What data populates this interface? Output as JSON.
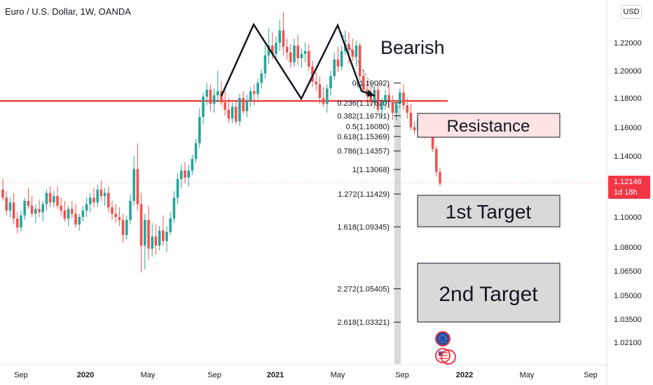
{
  "header": {
    "title": "Euro / U.S. Dollar, 1W, OANDA",
    "currency": "USD"
  },
  "last_price": {
    "value": "1.12146",
    "countdown": "1d 18h",
    "color": "#f23645"
  },
  "colors": {
    "up": "#26a69a",
    "down": "#ef5350",
    "resistance_line": "#e51e1e",
    "pattern": "#131722"
  },
  "chart_data": {
    "type": "candlestick",
    "title": "Euro / U.S. Dollar, 1W, OANDA",
    "y_ticks": [
      "1.22000",
      "1.20000",
      "1.18000",
      "1.16000",
      "1.14000",
      "1.12000",
      "1.10000",
      "1.08000",
      "1.06500",
      "1.05000",
      "1.03500",
      "1.02100"
    ],
    "x_ticks": [
      "Sep",
      "2020",
      "May",
      "Sep",
      "2021",
      "May",
      "Sep",
      "2022",
      "May",
      "Sep"
    ],
    "grid": false,
    "horizontal_line": 1.178,
    "price_line": 1.12146,
    "annotations": [
      "Bearish",
      "Resistance",
      "1st Target",
      "2nd Target"
    ],
    "pattern": "double top (M)",
    "fib_levels": [
      {
        "label": "0(1.19092)",
        "value": 1.19092
      },
      {
        "label": "0.236(1.17670)",
        "value": 1.1767
      },
      {
        "label": "0.382(1.16791)",
        "value": 1.16791
      },
      {
        "label": "0.5(1.16080)",
        "value": 1.1608
      },
      {
        "label": "0.618(1.15369)",
        "value": 1.15369
      },
      {
        "label": "0.786(1.14357)",
        "value": 1.14357
      },
      {
        "label": "1(1.13068)",
        "value": 1.13068
      },
      {
        "label": "1.272(1.11429)",
        "value": 1.11429
      },
      {
        "label": "1.618(1.09345)",
        "value": 1.09345
      },
      {
        "label": "2.272(1.05405)",
        "value": 1.05405
      },
      {
        "label": "2.618(1.03321)",
        "value": 1.03321
      }
    ],
    "series": [
      {
        "t": 0,
        "o": 1.117,
        "h": 1.124,
        "l": 1.11,
        "c": 1.112
      },
      {
        "t": 1,
        "o": 1.112,
        "h": 1.116,
        "l": 1.101,
        "c": 1.104
      },
      {
        "t": 2,
        "o": 1.104,
        "h": 1.112,
        "l": 1.1,
        "c": 1.109
      },
      {
        "t": 3,
        "o": 1.109,
        "h": 1.115,
        "l": 1.095,
        "c": 1.099
      },
      {
        "t": 4,
        "o": 1.099,
        "h": 1.103,
        "l": 1.089,
        "c": 1.093
      },
      {
        "t": 5,
        "o": 1.093,
        "h": 1.104,
        "l": 1.09,
        "c": 1.101
      },
      {
        "t": 6,
        "o": 1.101,
        "h": 1.112,
        "l": 1.098,
        "c": 1.11
      },
      {
        "t": 7,
        "o": 1.11,
        "h": 1.118,
        "l": 1.105,
        "c": 1.107
      },
      {
        "t": 8,
        "o": 1.107,
        "h": 1.113,
        "l": 1.1,
        "c": 1.102
      },
      {
        "t": 9,
        "o": 1.102,
        "h": 1.108,
        "l": 1.096,
        "c": 1.105
      },
      {
        "t": 10,
        "o": 1.105,
        "h": 1.111,
        "l": 1.1,
        "c": 1.103
      },
      {
        "t": 11,
        "o": 1.103,
        "h": 1.11,
        "l": 1.097,
        "c": 1.108
      },
      {
        "t": 12,
        "o": 1.108,
        "h": 1.117,
        "l": 1.104,
        "c": 1.115
      },
      {
        "t": 13,
        "o": 1.115,
        "h": 1.119,
        "l": 1.106,
        "c": 1.109
      },
      {
        "t": 14,
        "o": 1.109,
        "h": 1.116,
        "l": 1.106,
        "c": 1.113
      },
      {
        "t": 15,
        "o": 1.113,
        "h": 1.119,
        "l": 1.105,
        "c": 1.107
      },
      {
        "t": 16,
        "o": 1.107,
        "h": 1.112,
        "l": 1.101,
        "c": 1.104
      },
      {
        "t": 17,
        "o": 1.104,
        "h": 1.11,
        "l": 1.097,
        "c": 1.099
      },
      {
        "t": 18,
        "o": 1.099,
        "h": 1.107,
        "l": 1.094,
        "c": 1.105
      },
      {
        "t": 19,
        "o": 1.105,
        "h": 1.11,
        "l": 1.099,
        "c": 1.102
      },
      {
        "t": 20,
        "o": 1.102,
        "h": 1.108,
        "l": 1.093,
        "c": 1.095
      },
      {
        "t": 21,
        "o": 1.095,
        "h": 1.102,
        "l": 1.091,
        "c": 1.1
      },
      {
        "t": 22,
        "o": 1.1,
        "h": 1.107,
        "l": 1.097,
        "c": 1.104
      },
      {
        "t": 23,
        "o": 1.104,
        "h": 1.112,
        "l": 1.1,
        "c": 1.108
      },
      {
        "t": 24,
        "o": 1.108,
        "h": 1.115,
        "l": 1.103,
        "c": 1.112
      },
      {
        "t": 25,
        "o": 1.112,
        "h": 1.118,
        "l": 1.106,
        "c": 1.109
      },
      {
        "t": 26,
        "o": 1.109,
        "h": 1.12,
        "l": 1.106,
        "c": 1.117
      },
      {
        "t": 27,
        "o": 1.117,
        "h": 1.123,
        "l": 1.11,
        "c": 1.113
      },
      {
        "t": 28,
        "o": 1.113,
        "h": 1.118,
        "l": 1.107,
        "c": 1.115
      },
      {
        "t": 29,
        "o": 1.115,
        "h": 1.119,
        "l": 1.103,
        "c": 1.106
      },
      {
        "t": 30,
        "o": 1.106,
        "h": 1.11,
        "l": 1.098,
        "c": 1.102
      },
      {
        "t": 31,
        "o": 1.102,
        "h": 1.108,
        "l": 1.096,
        "c": 1.1
      },
      {
        "t": 32,
        "o": 1.1,
        "h": 1.106,
        "l": 1.094,
        "c": 1.098
      },
      {
        "t": 33,
        "o": 1.098,
        "h": 1.102,
        "l": 1.083,
        "c": 1.088
      },
      {
        "t": 34,
        "o": 1.088,
        "h": 1.101,
        "l": 1.085,
        "c": 1.098
      },
      {
        "t": 35,
        "o": 1.098,
        "h": 1.114,
        "l": 1.095,
        "c": 1.11
      },
      {
        "t": 36,
        "o": 1.11,
        "h": 1.14,
        "l": 1.107,
        "c": 1.131
      },
      {
        "t": 37,
        "o": 1.131,
        "h": 1.149,
        "l": 1.104,
        "c": 1.108
      },
      {
        "t": 38,
        "o": 1.108,
        "h": 1.115,
        "l": 1.064,
        "c": 1.081
      },
      {
        "t": 39,
        "o": 1.081,
        "h": 1.102,
        "l": 1.066,
        "c": 1.098
      },
      {
        "t": 40,
        "o": 1.098,
        "h": 1.107,
        "l": 1.072,
        "c": 1.079
      },
      {
        "t": 41,
        "o": 1.079,
        "h": 1.096,
        "l": 1.074,
        "c": 1.087
      },
      {
        "t": 42,
        "o": 1.087,
        "h": 1.095,
        "l": 1.075,
        "c": 1.081
      },
      {
        "t": 43,
        "o": 1.081,
        "h": 1.094,
        "l": 1.078,
        "c": 1.091
      },
      {
        "t": 44,
        "o": 1.091,
        "h": 1.101,
        "l": 1.081,
        "c": 1.084
      },
      {
        "t": 45,
        "o": 1.084,
        "h": 1.094,
        "l": 1.077,
        "c": 1.09
      },
      {
        "t": 46,
        "o": 1.09,
        "h": 1.103,
        "l": 1.088,
        "c": 1.099
      },
      {
        "t": 47,
        "o": 1.099,
        "h": 1.116,
        "l": 1.096,
        "c": 1.112
      },
      {
        "t": 48,
        "o": 1.112,
        "h": 1.128,
        "l": 1.108,
        "c": 1.124
      },
      {
        "t": 49,
        "o": 1.124,
        "h": 1.134,
        "l": 1.118,
        "c": 1.13
      },
      {
        "t": 50,
        "o": 1.13,
        "h": 1.136,
        "l": 1.121,
        "c": 1.125
      },
      {
        "t": 51,
        "o": 1.125,
        "h": 1.134,
        "l": 1.119,
        "c": 1.13
      },
      {
        "t": 52,
        "o": 1.13,
        "h": 1.141,
        "l": 1.127,
        "c": 1.138
      },
      {
        "t": 53,
        "o": 1.138,
        "h": 1.152,
        "l": 1.135,
        "c": 1.149
      },
      {
        "t": 54,
        "o": 1.149,
        "h": 1.173,
        "l": 1.146,
        "c": 1.167
      },
      {
        "t": 55,
        "o": 1.167,
        "h": 1.184,
        "l": 1.162,
        "c": 1.181
      },
      {
        "t": 56,
        "o": 1.181,
        "h": 1.191,
        "l": 1.175,
        "c": 1.186
      },
      {
        "t": 57,
        "o": 1.186,
        "h": 1.19,
        "l": 1.171,
        "c": 1.176
      },
      {
        "t": 58,
        "o": 1.176,
        "h": 1.187,
        "l": 1.17,
        "c": 1.182
      },
      {
        "t": 59,
        "o": 1.182,
        "h": 1.2,
        "l": 1.177,
        "c": 1.185
      },
      {
        "t": 60,
        "o": 1.185,
        "h": 1.192,
        "l": 1.175,
        "c": 1.177
      },
      {
        "t": 61,
        "o": 1.177,
        "h": 1.185,
        "l": 1.168,
        "c": 1.172
      },
      {
        "t": 62,
        "o": 1.172,
        "h": 1.18,
        "l": 1.163,
        "c": 1.166
      },
      {
        "t": 63,
        "o": 1.166,
        "h": 1.177,
        "l": 1.163,
        "c": 1.174
      },
      {
        "t": 64,
        "o": 1.174,
        "h": 1.178,
        "l": 1.162,
        "c": 1.164
      },
      {
        "t": 65,
        "o": 1.164,
        "h": 1.183,
        "l": 1.161,
        "c": 1.18
      },
      {
        "t": 66,
        "o": 1.18,
        "h": 1.185,
        "l": 1.169,
        "c": 1.171
      },
      {
        "t": 67,
        "o": 1.171,
        "h": 1.182,
        "l": 1.167,
        "c": 1.178
      },
      {
        "t": 68,
        "o": 1.178,
        "h": 1.188,
        "l": 1.174,
        "c": 1.185
      },
      {
        "t": 69,
        "o": 1.185,
        "h": 1.19,
        "l": 1.175,
        "c": 1.183
      },
      {
        "t": 70,
        "o": 1.183,
        "h": 1.194,
        "l": 1.179,
        "c": 1.191
      },
      {
        "t": 71,
        "o": 1.191,
        "h": 1.201,
        "l": 1.187,
        "c": 1.198
      },
      {
        "t": 72,
        "o": 1.198,
        "h": 1.218,
        "l": 1.194,
        "c": 1.211
      },
      {
        "t": 73,
        "o": 1.211,
        "h": 1.227,
        "l": 1.205,
        "c": 1.218
      },
      {
        "t": 74,
        "o": 1.218,
        "h": 1.225,
        "l": 1.208,
        "c": 1.212
      },
      {
        "t": 75,
        "o": 1.212,
        "h": 1.223,
        "l": 1.209,
        "c": 1.22
      },
      {
        "t": 76,
        "o": 1.22,
        "h": 1.231,
        "l": 1.214,
        "c": 1.226
      },
      {
        "t": 77,
        "o": 1.226,
        "h": 1.235,
        "l": 1.211,
        "c": 1.217
      },
      {
        "t": 78,
        "o": 1.217,
        "h": 1.222,
        "l": 1.208,
        "c": 1.213
      },
      {
        "t": 79,
        "o": 1.213,
        "h": 1.219,
        "l": 1.202,
        "c": 1.206
      },
      {
        "t": 80,
        "o": 1.206,
        "h": 1.222,
        "l": 1.203,
        "c": 1.218
      },
      {
        "t": 81,
        "o": 1.218,
        "h": 1.224,
        "l": 1.204,
        "c": 1.209
      },
      {
        "t": 82,
        "o": 1.209,
        "h": 1.216,
        "l": 1.202,
        "c": 1.212
      },
      {
        "t": 83,
        "o": 1.212,
        "h": 1.22,
        "l": 1.206,
        "c": 1.214
      },
      {
        "t": 84,
        "o": 1.214,
        "h": 1.219,
        "l": 1.2,
        "c": 1.203
      },
      {
        "t": 85,
        "o": 1.203,
        "h": 1.207,
        "l": 1.188,
        "c": 1.192
      },
      {
        "t": 86,
        "o": 1.192,
        "h": 1.199,
        "l": 1.185,
        "c": 1.19
      },
      {
        "t": 87,
        "o": 1.19,
        "h": 1.196,
        "l": 1.176,
        "c": 1.18
      },
      {
        "t": 88,
        "o": 1.18,
        "h": 1.188,
        "l": 1.174,
        "c": 1.176
      },
      {
        "t": 89,
        "o": 1.176,
        "h": 1.19,
        "l": 1.17,
        "c": 1.187
      },
      {
        "t": 90,
        "o": 1.187,
        "h": 1.2,
        "l": 1.182,
        "c": 1.196
      },
      {
        "t": 91,
        "o": 1.196,
        "h": 1.213,
        "l": 1.193,
        "c": 1.208
      },
      {
        "t": 92,
        "o": 1.208,
        "h": 1.217,
        "l": 1.199,
        "c": 1.203
      },
      {
        "t": 93,
        "o": 1.203,
        "h": 1.218,
        "l": 1.2,
        "c": 1.214
      },
      {
        "t": 94,
        "o": 1.214,
        "h": 1.226,
        "l": 1.211,
        "c": 1.219
      },
      {
        "t": 95,
        "o": 1.219,
        "h": 1.225,
        "l": 1.205,
        "c": 1.215
      },
      {
        "t": 96,
        "o": 1.215,
        "h": 1.222,
        "l": 1.207,
        "c": 1.21
      },
      {
        "t": 97,
        "o": 1.21,
        "h": 1.221,
        "l": 1.203,
        "c": 1.218
      },
      {
        "t": 98,
        "o": 1.218,
        "h": 1.22,
        "l": 1.193,
        "c": 1.196
      },
      {
        "t": 99,
        "o": 1.196,
        "h": 1.201,
        "l": 1.184,
        "c": 1.186
      },
      {
        "t": 100,
        "o": 1.186,
        "h": 1.192,
        "l": 1.178,
        "c": 1.182
      },
      {
        "t": 101,
        "o": 1.182,
        "h": 1.19,
        "l": 1.174,
        "c": 1.177
      },
      {
        "t": 102,
        "o": 1.177,
        "h": 1.189,
        "l": 1.173,
        "c": 1.186
      },
      {
        "t": 103,
        "o": 1.186,
        "h": 1.191,
        "l": 1.17,
        "c": 1.172
      },
      {
        "t": 104,
        "o": 1.172,
        "h": 1.18,
        "l": 1.166,
        "c": 1.177
      },
      {
        "t": 105,
        "o": 1.177,
        "h": 1.186,
        "l": 1.172,
        "c": 1.182
      },
      {
        "t": 106,
        "o": 1.182,
        "h": 1.19,
        "l": 1.173,
        "c": 1.177
      },
      {
        "t": 107,
        "o": 1.177,
        "h": 1.182,
        "l": 1.165,
        "c": 1.17
      },
      {
        "t": 108,
        "o": 1.17,
        "h": 1.178,
        "l": 1.165,
        "c": 1.176
      },
      {
        "t": 109,
        "o": 1.176,
        "h": 1.187,
        "l": 1.173,
        "c": 1.184
      },
      {
        "t": 110,
        "o": 1.184,
        "h": 1.19,
        "l": 1.172,
        "c": 1.175
      },
      {
        "t": 111,
        "o": 1.175,
        "h": 1.18,
        "l": 1.166,
        "c": 1.17
      },
      {
        "t": 112,
        "o": 1.17,
        "h": 1.176,
        "l": 1.158,
        "c": 1.16
      },
      {
        "t": 113,
        "o": 1.16,
        "h": 1.164,
        "l": 1.155,
        "c": 1.158
      },
      {
        "t": 114,
        "o": 1.158,
        "h": 1.168,
        "l": 1.156,
        "c": 1.166
      },
      {
        "t": 115,
        "o": 1.166,
        "h": 1.169,
        "l": 1.155,
        "c": 1.16
      },
      {
        "t": 116,
        "o": 1.16,
        "h": 1.162,
        "l": 1.152,
        "c": 1.156
      },
      {
        "t": 117,
        "o": 1.156,
        "h": 1.162,
        "l": 1.153,
        "c": 1.16
      },
      {
        "t": 118,
        "o": 1.16,
        "h": 1.161,
        "l": 1.143,
        "c": 1.145
      },
      {
        "t": 119,
        "o": 1.145,
        "h": 1.147,
        "l": 1.126,
        "c": 1.129
      },
      {
        "t": 120,
        "o": 1.129,
        "h": 1.132,
        "l": 1.119,
        "c": 1.121
      }
    ]
  }
}
